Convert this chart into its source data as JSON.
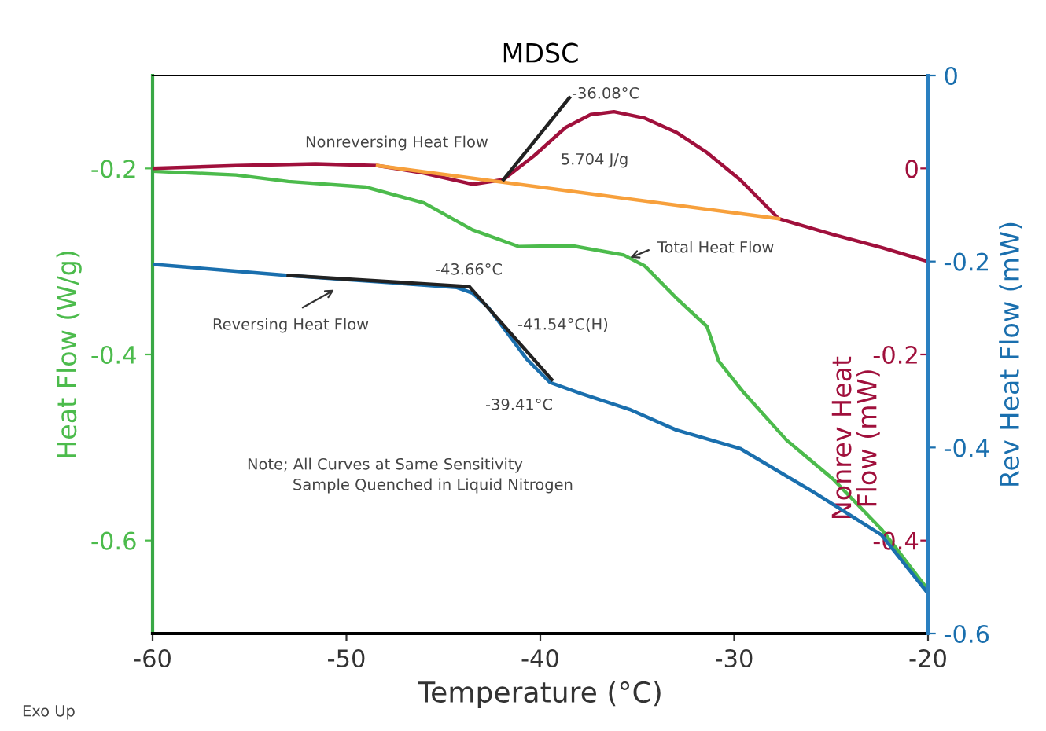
{
  "chart_data": {
    "type": "line",
    "title": "MDSC",
    "xlabel": "Temperature (°C)",
    "ylabel": "Heat Flow (W/g)",
    "y2label": "Nonrev Heat\nFlow (mW)",
    "y3label": "Rev Heat Flow (mW)",
    "xlim": [
      -60,
      -20
    ],
    "xticks": [
      -60,
      -50,
      -40,
      -30,
      -20
    ],
    "ylim": [
      -0.7,
      -0.1
    ],
    "yticks": [
      -0.2,
      -0.4,
      -0.6
    ],
    "y2lim": [
      -0.5,
      0.1
    ],
    "y2ticks": [
      0,
      -0.2,
      -0.4
    ],
    "y3lim": [
      -0.6,
      0
    ],
    "y3ticks": [
      0,
      -0.2,
      -0.4,
      -0.6
    ],
    "grid": false,
    "series": [
      {
        "name": "Total Heat Flow",
        "color": "#4cbb4c",
        "axis": "y",
        "x": [
          -60,
          -55.7,
          -53,
          -49,
          -46,
          -43.5,
          -41.1,
          -38.4,
          -35.7,
          -34.6,
          -33,
          -31.4,
          -30.8,
          -29.5,
          -27.3,
          -24.9,
          -22.4,
          -20
        ],
        "values": [
          -0.203,
          -0.207,
          -0.214,
          -0.22,
          -0.237,
          -0.266,
          -0.284,
          -0.283,
          -0.293,
          -0.305,
          -0.339,
          -0.37,
          -0.407,
          -0.441,
          -0.492,
          -0.534,
          -0.588,
          -0.653
        ]
      },
      {
        "name": "Nonreversing Heat Flow",
        "color": "#a0103c",
        "axis": "y2",
        "x": [
          -60,
          -55.7,
          -51.6,
          -48.4,
          -46,
          -43.5,
          -41.9,
          -40.3,
          -38.7,
          -37.4,
          -36.2,
          -34.6,
          -33,
          -31.4,
          -29.7,
          -27.7,
          -24.9,
          -22.4,
          -20
        ],
        "values": [
          0,
          0.003,
          0.005,
          0.003,
          -0.005,
          -0.017,
          -0.012,
          0.014,
          0.044,
          0.058,
          0.061,
          0.054,
          0.039,
          0.017,
          -0.012,
          -0.054,
          -0.071,
          -0.085,
          -0.1
        ]
      },
      {
        "name": "Reversing Heat Flow",
        "color": "#1a6fae",
        "axis": "y3",
        "x": [
          -60,
          -53,
          -47.6,
          -44.3,
          -43.5,
          -42.7,
          -41.7,
          -40.7,
          -39.5,
          -37.9,
          -35.4,
          -33,
          -29.7,
          -25.9,
          -22.4,
          -20
        ],
        "values": [
          -0.203,
          -0.215,
          -0.223,
          -0.228,
          -0.234,
          -0.249,
          -0.277,
          -0.305,
          -0.33,
          -0.342,
          -0.359,
          -0.381,
          -0.401,
          -0.448,
          -0.494,
          -0.557
        ]
      },
      {
        "color": "#f7a03c",
        "axis": "y2",
        "x": [
          -48.4,
          -27.7
        ],
        "values": [
          0.003,
          -0.054
        ]
      },
      {
        "color": "#222222",
        "axis": "y2",
        "x": [
          -41.9,
          -38.5
        ],
        "values": [
          -0.012,
          0.076
        ]
      },
      {
        "color": "#222222",
        "axis": "y3",
        "x": [
          -53,
          -43.66,
          -39.41
        ],
        "values": [
          -0.215,
          -0.227,
          -0.327
        ]
      }
    ],
    "annotations": [
      "-36.08°C",
      "5.704 J/g",
      "-43.66°C",
      "-41.54°C(H)",
      "-39.41°C",
      "Note; All Curves at Same Sensitivity",
      "Sample Quenched in Liquid Nitrogen",
      "Exo Up"
    ]
  }
}
